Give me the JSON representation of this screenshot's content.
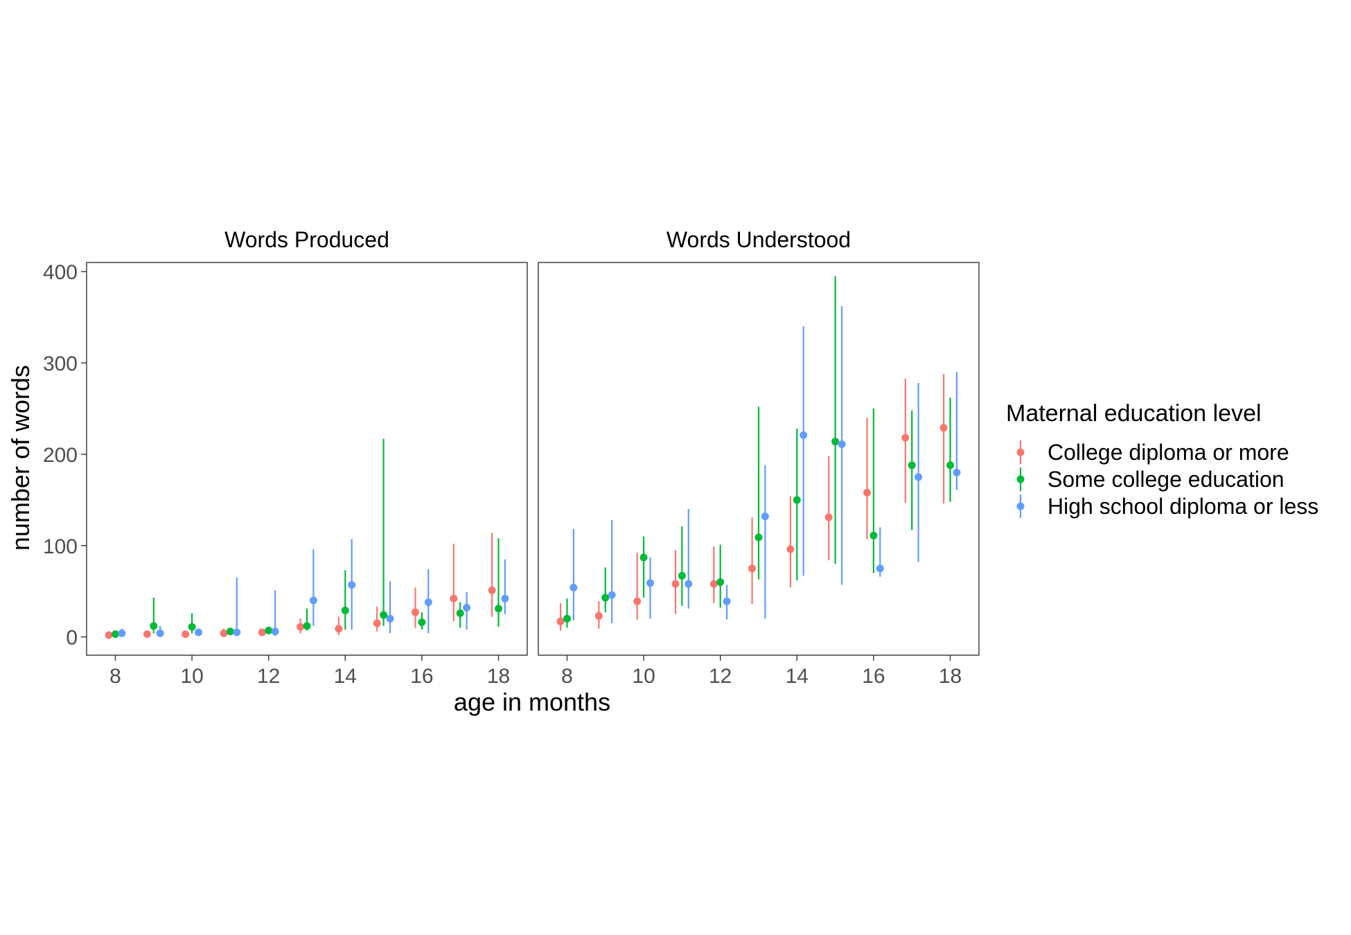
{
  "chart_data": {
    "type": "scatter",
    "subtype": "pointrange",
    "facets": [
      "Words Produced",
      "Words Understood"
    ],
    "xlabel": "age in months",
    "ylabel": "number of words",
    "xticks": [
      8,
      10,
      12,
      14,
      16,
      18
    ],
    "yticks": [
      0,
      100,
      200,
      300,
      400
    ],
    "xlim": [
      7.25,
      18.75
    ],
    "ylim": [
      -20,
      410
    ],
    "grid": false,
    "legend": {
      "title": "Maternal education level",
      "position": "right",
      "entries": [
        "College diploma or more",
        "Some college education",
        "High school diploma or less"
      ]
    },
    "series": [
      {
        "name": "College diploma or more",
        "color": "#F8766D"
      },
      {
        "name": "Some college education",
        "color": "#00BA38"
      },
      {
        "name": "High school diploma or less",
        "color": "#619CFF"
      }
    ],
    "panels": [
      {
        "title": "Words Produced",
        "points": [
          [
            [
              8,
              2,
              0,
              4
            ],
            [
              8,
              3,
              0,
              7
            ],
            [
              8,
              4,
              0,
              9
            ]
          ],
          [
            [
              9,
              3,
              0,
              6
            ],
            [
              9,
              12,
              4,
              43
            ],
            [
              9,
              4,
              0,
              12
            ]
          ],
          [
            [
              10,
              3,
              0,
              7
            ],
            [
              10,
              11,
              4,
              26
            ],
            [
              10,
              5,
              1,
              9
            ]
          ],
          [
            [
              11,
              4,
              1,
              9
            ],
            [
              11,
              6,
              2,
              10
            ],
            [
              11,
              5,
              1,
              65
            ]
          ],
          [
            [
              12,
              5,
              2,
              9
            ],
            [
              12,
              7,
              3,
              11
            ],
            [
              12,
              6,
              1,
              51
            ]
          ],
          [
            [
              13,
              11,
              4,
              20
            ],
            [
              13,
              12,
              7,
              31
            ],
            [
              13,
              40,
              12,
              96
            ]
          ],
          [
            [
              14,
              9,
              2,
              22
            ],
            [
              14,
              29,
              8,
              73
            ],
            [
              14,
              57,
              8,
              107
            ]
          ],
          [
            [
              15,
              15,
              6,
              33
            ],
            [
              15,
              24,
              12,
              217
            ],
            [
              15,
              20,
              4,
              61
            ]
          ],
          [
            [
              16,
              27,
              10,
              54
            ],
            [
              16,
              16,
              8,
              27
            ],
            [
              16,
              38,
              4,
              74
            ]
          ],
          [
            [
              17,
              42,
              17,
              102
            ],
            [
              17,
              26,
              10,
              38
            ],
            [
              17,
              32,
              8,
              49
            ]
          ],
          [
            [
              18,
              51,
              22,
              114
            ],
            [
              18,
              31,
              11,
              108
            ],
            [
              18,
              42,
              25,
              85
            ]
          ]
        ]
      },
      {
        "title": "Words Understood",
        "points": [
          [
            [
              8,
              17,
              7,
              37
            ],
            [
              8,
              20,
              10,
              42
            ],
            [
              8,
              54,
              18,
              118
            ]
          ],
          [
            [
              9,
              23,
              9,
              39
            ],
            [
              9,
              43,
              27,
              76
            ],
            [
              9,
              46,
              15,
              128
            ]
          ],
          [
            [
              10,
              39,
              19,
              92
            ],
            [
              10,
              87,
              43,
              110
            ],
            [
              10,
              59,
              20,
              87
            ]
          ],
          [
            [
              11,
              58,
              25,
              95
            ],
            [
              11,
              67,
              34,
              121
            ],
            [
              11,
              58,
              31,
              140
            ]
          ],
          [
            [
              12,
              58,
              37,
              99
            ],
            [
              12,
              60,
              32,
              101
            ],
            [
              12,
              39,
              19,
              57
            ]
          ],
          [
            [
              13,
              75,
              36,
              131
            ],
            [
              13,
              109,
              63,
              252
            ],
            [
              13,
              132,
              20,
              188
            ]
          ],
          [
            [
              14,
              96,
              54,
              154
            ],
            [
              14,
              150,
              62,
              228
            ],
            [
              14,
              221,
              67,
              340
            ]
          ],
          [
            [
              15,
              131,
              84,
              198
            ],
            [
              15,
              214,
              80,
              395
            ],
            [
              15,
              211,
              57,
              362
            ]
          ],
          [
            [
              16,
              158,
              107,
              240
            ],
            [
              16,
              111,
              70,
              250
            ],
            [
              16,
              75,
              66,
              120
            ]
          ],
          [
            [
              17,
              218,
              147,
              283
            ],
            [
              17,
              188,
              117,
              248
            ],
            [
              17,
              175,
              82,
              278
            ]
          ],
          [
            [
              18,
              229,
              146,
              288
            ],
            [
              18,
              188,
              148,
              262
            ],
            [
              18,
              180,
              161,
              290
            ]
          ]
        ]
      }
    ]
  }
}
